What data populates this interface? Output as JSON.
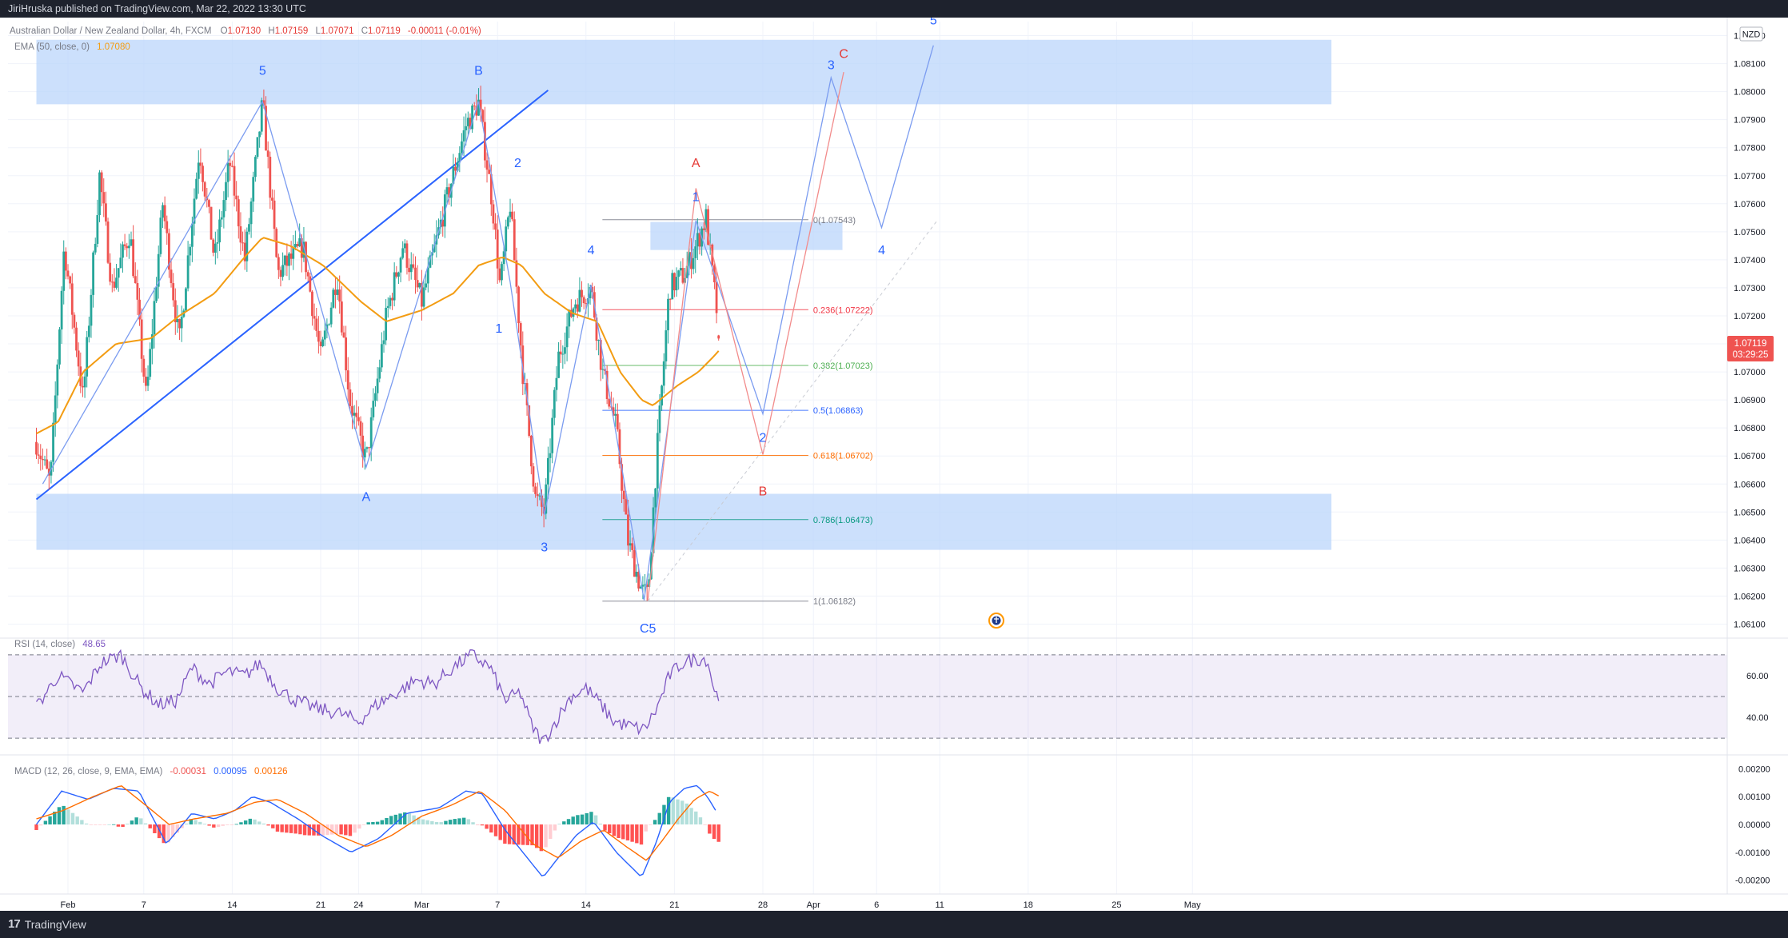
{
  "header": {
    "published_text": "JiriHruska published on TradingView.com, Mar 22, 2022 13:30 UTC"
  },
  "footer": {
    "logo_text": "TradingView",
    "logo_mark": "17"
  },
  "colors": {
    "up": "#26a69a",
    "down": "#ef5350",
    "ema": "#f39c12",
    "zone": "#bbd6fb",
    "wave_blue": "#2962ff",
    "wave_red": "#e53935",
    "rsi": "#7e57c2",
    "macd": "#2962ff",
    "signal": "#ff6d00"
  },
  "legend": {
    "symbol": "Australian Dollar / New Zealand Dollar, 4h, FXCM",
    "ohlc": [
      {
        "k": "O",
        "v": "1.07130"
      },
      {
        "k": "H",
        "v": "1.07159"
      },
      {
        "k": "L",
        "v": "1.07071"
      },
      {
        "k": "C",
        "v": "1.07119"
      }
    ],
    "change": "-0.00011 (-0.01%)",
    "ema_label": "EMA (50, close, 0)",
    "ema_value": "1.07080"
  },
  "chart_data": [
    {
      "type": "candlestick",
      "currency": "NZD",
      "ylim": [
        1.0605,
        1.0825
      ],
      "y_ticks": [
        "1.08200",
        "1.08100",
        "1.08000",
        "1.07900",
        "1.07800",
        "1.07700",
        "1.07600",
        "1.07500",
        "1.07400",
        "1.07300",
        "1.07200",
        "1.07100",
        "1.07000",
        "1.06900",
        "1.06800",
        "1.06700",
        "1.06600",
        "1.06500",
        "1.06400",
        "1.06300",
        "1.06200",
        "1.06100"
      ],
      "x_ticks": [
        {
          "label": "Feb",
          "day": 0
        },
        {
          "label": "7",
          "day": 6
        },
        {
          "label": "14",
          "day": 13
        },
        {
          "label": "21",
          "day": 20
        },
        {
          "label": "24",
          "day": 23
        },
        {
          "label": "Mar",
          "day": 28
        },
        {
          "label": "7",
          "day": 34
        },
        {
          "label": "14",
          "day": 41
        },
        {
          "label": "21",
          "day": 48
        },
        {
          "label": "28",
          "day": 55
        },
        {
          "label": "Apr",
          "day": 59
        },
        {
          "label": "6",
          "day": 64
        },
        {
          "label": "11",
          "day": 69
        },
        {
          "label": "18",
          "day": 76
        },
        {
          "label": "25",
          "day": 83
        },
        {
          "label": "May",
          "day": 89
        }
      ],
      "last_price": "1.07119",
      "countdown": "03:29:25",
      "price_path": [
        [
          -2.5,
          1.0675
        ],
        [
          -1.4,
          1.066
        ],
        [
          -0.3,
          1.0745
        ],
        [
          1.2,
          1.069
        ],
        [
          2.5,
          1.077
        ],
        [
          3.5,
          1.073
        ],
        [
          4.9,
          1.075
        ],
        [
          6.2,
          1.069
        ],
        [
          7.5,
          1.076
        ],
        [
          8.8,
          1.071
        ],
        [
          10.4,
          1.078
        ],
        [
          11.6,
          1.074
        ],
        [
          12.8,
          1.0775
        ],
        [
          14.0,
          1.074
        ],
        [
          15.4,
          1.0796
        ],
        [
          16.6,
          1.0735
        ],
        [
          18.6,
          1.0745
        ],
        [
          20.0,
          1.0705
        ],
        [
          21.3,
          1.0735
        ],
        [
          22.3,
          1.069
        ],
        [
          23.6,
          1.0668
        ],
        [
          25.2,
          1.072
        ],
        [
          26.5,
          1.0745
        ],
        [
          28.0,
          1.0725
        ],
        [
          29.6,
          1.0755
        ],
        [
          31.5,
          1.0788
        ],
        [
          32.5,
          1.0796
        ],
        [
          33.6,
          1.076
        ],
        [
          34.2,
          1.073
        ],
        [
          35.0,
          1.076
        ],
        [
          36.0,
          1.07
        ],
        [
          37.0,
          1.0655
        ],
        [
          37.7,
          1.065
        ],
        [
          38.8,
          1.0705
        ],
        [
          40.1,
          1.0725
        ],
        [
          41.4,
          1.073
        ],
        [
          42.3,
          1.07
        ],
        [
          43.4,
          1.068
        ],
        [
          44.3,
          1.064
        ],
        [
          45.4,
          1.0622
        ],
        [
          45.9,
          1.062
        ],
        [
          46.6,
          1.067
        ],
        [
          47.6,
          1.073
        ],
        [
          48.8,
          1.0735
        ],
        [
          49.7,
          1.0745
        ],
        [
          50.5,
          1.0755
        ],
        [
          51.0,
          1.0735
        ],
        [
          51.6,
          1.0712
        ]
      ],
      "ema_path": [
        [
          -2.5,
          1.0678
        ],
        [
          -0.8,
          1.0682
        ],
        [
          1.2,
          1.07
        ],
        [
          3.8,
          1.071
        ],
        [
          6.6,
          1.0712
        ],
        [
          8.8,
          1.072
        ],
        [
          11.6,
          1.0728
        ],
        [
          13.8,
          1.074
        ],
        [
          15.4,
          1.0748
        ],
        [
          17.6,
          1.0745
        ],
        [
          20.2,
          1.0738
        ],
        [
          23.2,
          1.0725
        ],
        [
          25.2,
          1.0718
        ],
        [
          28.0,
          1.0722
        ],
        [
          30.5,
          1.0728
        ],
        [
          32.5,
          1.0738
        ],
        [
          34.4,
          1.0741
        ],
        [
          35.9,
          1.0738
        ],
        [
          37.7,
          1.0728
        ],
        [
          39.9,
          1.0721
        ],
        [
          41.9,
          1.0718
        ],
        [
          43.7,
          1.07
        ],
        [
          45.4,
          1.069
        ],
        [
          46.3,
          1.0688
        ],
        [
          48.2,
          1.0695
        ],
        [
          49.9,
          1.07
        ],
        [
          51.0,
          1.0705
        ],
        [
          51.6,
          1.0708
        ]
      ],
      "zones": [
        {
          "from_day": -2.5,
          "to_day": 100,
          "low": 1.07955,
          "high": 1.08185
        },
        {
          "from_day": 46.1,
          "to_day": 61.3,
          "low": 1.07435,
          "high": 1.07535
        },
        {
          "from_day": -2.5,
          "to_day": 100,
          "low": 1.06365,
          "high": 1.06565
        }
      ],
      "trendline": [
        [
          -2.5,
          1.06545
        ],
        [
          38.0,
          1.08005
        ]
      ],
      "fibonacci": {
        "from_day": 42.3,
        "to_day": 58.6,
        "levels": [
          {
            "ratio": "0",
            "price": 1.07543,
            "label": "0(1.07543)",
            "color": "#787b86"
          },
          {
            "ratio": "0.236",
            "price": 1.07222,
            "label": "0.236(1.07222)",
            "color": "#f23645"
          },
          {
            "ratio": "0.382",
            "price": 1.07023,
            "label": "0.382(1.07023)",
            "color": "#4caf50"
          },
          {
            "ratio": "0.5",
            "price": 1.06863,
            "label": "0.5(1.06863)",
            "color": "#2962ff"
          },
          {
            "ratio": "0.618",
            "price": 1.06702,
            "label": "0.618(1.06702)",
            "color": "#ff6d00"
          },
          {
            "ratio": "0.786",
            "price": 1.06473,
            "label": "0.786(1.06473)",
            "color": "#089981"
          },
          {
            "ratio": "1",
            "price": 1.06182,
            "label": "1(1.06182)",
            "color": "#787b86"
          }
        ]
      },
      "waves": [
        {
          "color": "blue",
          "points": [
            [
              -2.0,
              1.066
            ],
            [
              15.4,
              1.07965
            ],
            [
              23.6,
              1.0666
            ],
            [
              32.5,
              1.07965
            ],
            [
              35.0,
              1.0732
            ],
            [
              37.7,
              1.0649
            ],
            [
              41.4,
              1.0731
            ],
            [
              45.6,
              1.06185
            ],
            [
              49.7,
              1.0754
            ],
            [
              55.0,
              1.0685
            ],
            [
              60.4,
              1.0805
            ],
            [
              64.4,
              1.07515
            ],
            [
              68.5,
              1.08165
            ]
          ]
        },
        {
          "color": "red",
          "points": [
            [
              45.9,
              1.06185
            ],
            [
              49.7,
              1.07655
            ],
            [
              55.0,
              1.06705
            ],
            [
              61.4,
              1.0807
            ]
          ]
        }
      ],
      "projection_dashed": [
        [
          45.9,
          1.06182
        ],
        [
          68.8,
          1.0754
        ]
      ],
      "wave_labels": [
        {
          "text": "5",
          "day": 15.4,
          "price": 1.0806,
          "color": "blue"
        },
        {
          "text": "B",
          "day": 32.5,
          "price": 1.0806,
          "color": "blue"
        },
        {
          "text": "A",
          "day": 23.6,
          "price": 1.0654,
          "color": "blue"
        },
        {
          "text": "2",
          "day": 35.6,
          "price": 1.0773,
          "color": "blue"
        },
        {
          "text": "1",
          "day": 34.1,
          "price": 1.0714,
          "color": "blue"
        },
        {
          "text": "3",
          "day": 37.7,
          "price": 1.0636,
          "color": "blue"
        },
        {
          "text": "4",
          "day": 41.4,
          "price": 1.0742,
          "color": "blue"
        },
        {
          "text": "C5",
          "day": 45.9,
          "price": 1.0607,
          "color": "blue"
        },
        {
          "text": "1",
          "day": 49.7,
          "price": 1.0761,
          "color": "blue"
        },
        {
          "text": "A",
          "day": 49.7,
          "price": 1.0773,
          "color": "red"
        },
        {
          "text": "2",
          "day": 55.0,
          "price": 1.0675,
          "color": "blue"
        },
        {
          "text": "B",
          "day": 55.0,
          "price": 1.0656,
          "color": "red"
        },
        {
          "text": "3",
          "day": 60.4,
          "price": 1.0808,
          "color": "blue"
        },
        {
          "text": "C",
          "day": 61.4,
          "price": 1.0812,
          "color": "red"
        },
        {
          "text": "4",
          "day": 64.4,
          "price": 1.0742,
          "color": "blue"
        },
        {
          "text": "5",
          "day": 68.5,
          "price": 1.0824,
          "color": "blue"
        }
      ]
    },
    {
      "type": "line",
      "title": "RSI (14, close)",
      "value": "48.65",
      "ylim": [
        22,
        78
      ],
      "bands": [
        30,
        70
      ],
      "mid": 50,
      "y_ticks": [
        "60.00",
        "40.00"
      ],
      "anchors": [
        [
          -2.5,
          45
        ],
        [
          -0.8,
          60
        ],
        [
          1.2,
          52
        ],
        [
          2.6,
          66
        ],
        [
          4.2,
          70
        ],
        [
          5.8,
          54
        ],
        [
          7.2,
          46
        ],
        [
          8.6,
          48
        ],
        [
          9.8,
          64
        ],
        [
          11.2,
          56
        ],
        [
          12.6,
          62
        ],
        [
          14.0,
          60
        ],
        [
          15.2,
          66
        ],
        [
          16.6,
          54
        ],
        [
          18.0,
          48
        ],
        [
          19.8,
          44
        ],
        [
          21.5,
          42
        ],
        [
          23.0,
          38
        ],
        [
          24.4,
          46
        ],
        [
          26.1,
          52
        ],
        [
          27.6,
          58
        ],
        [
          29.0,
          56
        ],
        [
          30.5,
          64
        ],
        [
          32.0,
          70
        ],
        [
          33.4,
          64
        ],
        [
          34.6,
          48
        ],
        [
          35.8,
          52
        ],
        [
          36.7,
          36
        ],
        [
          37.6,
          28
        ],
        [
          38.6,
          38
        ],
        [
          39.8,
          50
        ],
        [
          41.0,
          54
        ],
        [
          42.2,
          46
        ],
        [
          43.2,
          38
        ],
        [
          44.3,
          36
        ],
        [
          45.6,
          34
        ],
        [
          46.6,
          44
        ],
        [
          47.6,
          60
        ],
        [
          48.6,
          66
        ],
        [
          49.7,
          68
        ],
        [
          50.6,
          68
        ],
        [
          51.2,
          52
        ],
        [
          51.6,
          49
        ]
      ]
    },
    {
      "type": "bar",
      "title": "MACD (12, 26, close, 9, EMA, EMA)",
      "values_legend": [
        "-0.00031",
        "0.00095",
        "0.00126"
      ],
      "ylim": [
        -0.0025,
        0.0025
      ],
      "y_ticks": [
        "0.00200",
        "0.00100",
        "0.00000",
        "-0.00100",
        "-0.00200"
      ],
      "macd_anchors": [
        [
          -2.5,
          0.0
        ],
        [
          -0.5,
          0.0012
        ],
        [
          1.6,
          0.0009
        ],
        [
          3.6,
          0.0013
        ],
        [
          5.6,
          0.0012
        ],
        [
          7.8,
          -0.0007
        ],
        [
          9.8,
          0.0004
        ],
        [
          11.6,
          0.0002
        ],
        [
          13.2,
          0.0005
        ],
        [
          14.6,
          0.001
        ],
        [
          16.0,
          0.0008
        ],
        [
          18.2,
          0.0002
        ],
        [
          20.1,
          -0.0004
        ],
        [
          22.4,
          -0.001
        ],
        [
          24.6,
          -0.0005
        ],
        [
          26.8,
          0.0004
        ],
        [
          29.4,
          0.0006
        ],
        [
          31.5,
          0.0012
        ],
        [
          32.8,
          0.0011
        ],
        [
          34.6,
          -0.0002
        ],
        [
          36.0,
          -0.001
        ],
        [
          37.6,
          -0.0019
        ],
        [
          38.8,
          -0.0012
        ],
        [
          40.2,
          -0.0004
        ],
        [
          41.6,
          0.0001
        ],
        [
          43.4,
          -0.001
        ],
        [
          45.4,
          -0.0019
        ],
        [
          46.6,
          -0.0006
        ],
        [
          47.6,
          0.0008
        ],
        [
          48.8,
          0.0013
        ],
        [
          49.8,
          0.0014
        ],
        [
          50.6,
          0.001
        ],
        [
          51.4,
          0.0004
        ]
      ],
      "signal_anchors": [
        [
          -2.5,
          0.0002
        ],
        [
          -0.4,
          0.0005
        ],
        [
          2.0,
          0.001
        ],
        [
          4.2,
          0.0014
        ],
        [
          6.4,
          0.0006
        ],
        [
          8.0,
          0.0
        ],
        [
          10.0,
          0.0002
        ],
        [
          12.6,
          0.0004
        ],
        [
          14.8,
          0.0008
        ],
        [
          16.6,
          0.0009
        ],
        [
          18.8,
          0.0004
        ],
        [
          21.4,
          -0.0004
        ],
        [
          23.6,
          -0.0008
        ],
        [
          25.6,
          -0.0004
        ],
        [
          28.0,
          0.0003
        ],
        [
          30.4,
          0.0007
        ],
        [
          32.6,
          0.0012
        ],
        [
          34.6,
          0.0005
        ],
        [
          36.8,
          -0.0007
        ],
        [
          38.8,
          -0.0012
        ],
        [
          40.6,
          -0.0006
        ],
        [
          42.4,
          -0.0002
        ],
        [
          44.2,
          -0.0008
        ],
        [
          45.8,
          -0.0013
        ],
        [
          47.0,
          -0.0006
        ],
        [
          48.3,
          0.0002
        ],
        [
          49.6,
          0.0009
        ],
        [
          50.8,
          0.0012
        ],
        [
          51.6,
          0.001
        ]
      ]
    }
  ]
}
